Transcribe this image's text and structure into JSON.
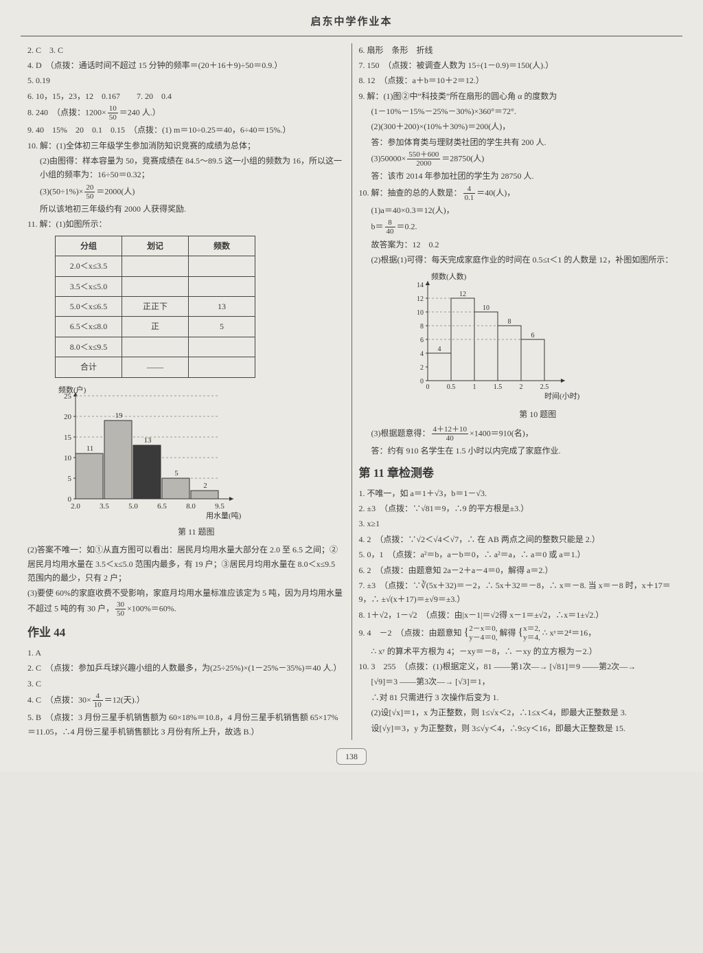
{
  "header": "启东中学作业本",
  "pageNumber": "138",
  "left": {
    "l2": "2. C　3. C",
    "l4": "4. D　（点拨：通话时间不超过 15 分钟的频率＝(20＋16＋9)÷50＝0.9.）",
    "l5": "5. 0.19",
    "l6": "6. 10，15，23，12　0.167　　7. 20　0.4",
    "l8a": "8. 240　（点拨：1200×",
    "l8b": "＝240 人.）",
    "l9a": "9. 40　15%　20　0.1　0.15　（点拨：(1) m＝10÷0.25＝40，6÷40＝15%.）",
    "l10_1": "10. 解：(1)全体初三年级学生参加消防知识竞赛的成绩为总体；",
    "l10_2": "(2)由图得：样本容量为 50，竞赛成绩在 84.5～89.5 这一小组的频数为 16，所以这一小组的频率为：16÷50＝0.32；",
    "l10_3a": "(3)(50÷1%)×",
    "l10_3b": "＝2000(人)",
    "l10_4": "所以该地初三年级约有 2000 人获得奖励.",
    "l11_1": "11. 解：(1)如图所示：",
    "table": {
      "headers": [
        "分组",
        "划记",
        "频数"
      ],
      "rows": [
        [
          "2.0＜x≤3.5",
          "",
          ""
        ],
        [
          "3.5＜x≤5.0",
          "",
          ""
        ],
        [
          "5.0＜x≤6.5",
          "正正下",
          "13"
        ],
        [
          "6.5＜x≤8.0",
          "正",
          "5"
        ],
        [
          "8.0＜x≤9.5",
          "",
          ""
        ],
        [
          "合计",
          "——",
          ""
        ]
      ]
    },
    "chart1": {
      "type": "bar",
      "yLabel": "频数(户)",
      "xLabel": "用水量(吨)",
      "yTicks": [
        0,
        5,
        10,
        15,
        20,
        25
      ],
      "xTicks": [
        "2.0",
        "3.5",
        "5.0",
        "6.5",
        "8.0",
        "9.5"
      ],
      "values": [
        11,
        19,
        13,
        5,
        2
      ],
      "highlightIndex": 2,
      "barColor": "#b8b6b0",
      "highlightColor": "#3a3a3a",
      "axisColor": "#333",
      "caption": "第 11 题图"
    },
    "l11_2": "(2)答案不唯一：如①从直方图可以看出：居民月均用水量大部分在 2.0 至 6.5 之间；②居民月均用水量在 3.5＜x≤5.0 范围内最多，有 19 户；③居民月均用水量在 8.0＜x≤9.5 范围内的最少，只有 2 户；",
    "l11_3a": "(3)要使 60%的家庭收费不受影响，家庭月均用水量标准应该定为 5 吨，因为月均用水量不超过 5 吨的有 30 户，",
    "l11_3b": "×100%＝60%.",
    "hw44": "作业 44",
    "h1": "1. A",
    "h2": "2. C　（点拨：参加乒乓球兴趣小组的人数最多，为(25÷25%)×(1－25%－35%)＝40 人.）",
    "h3": "3. C",
    "h4a": "4. C　（点拨：30×",
    "h4b": "＝12(天).）",
    "h5": "5. B　（点拨：3 月份三星手机销售额为 60×18%＝10.8，4 月份三星手机销售额 65×17%＝11.05，∴4 月份三星手机销售额比 3 月份有所上升，故选 B.）"
  },
  "right": {
    "r6": "6. 扇形　条形　折线",
    "r7": "7. 150　（点拨：被调查人数为 15÷(1－0.9)＝150(人).）",
    "r8": "8. 12　（点拨：a＋b＝10＋2＝12.）",
    "r9_1": "9. 解：(1)图②中“科技类”所在扇形的圆心角 α 的度数为",
    "r9_2": "(1－10%－15%－25%－30%)×360°＝72°.",
    "r9_3": "(2)(300＋200)×(10%＋30%)＝200(人)，",
    "r9_4": "答：参加体育类与理财类社团的学生共有 200 人.",
    "r9_5a": "(3)50000×",
    "r9_5b": "＝28750(人)",
    "r9_6": "答：该市 2014 年参加社团的学生为 28750 人.",
    "r10_1a": "10. 解：抽查的总的人数是：",
    "r10_1b": "＝40(人)，",
    "r10_2": "(1)a＝40×0.3＝12(人)，",
    "r10_3a": "b＝",
    "r10_3b": "＝0.2.",
    "r10_4": "故答案为：12　0.2",
    "r10_5": "(2)根据(1)可得：每天完成家庭作业的时间在 0.5≤t＜1 的人数是 12，补图如图所示：",
    "chart2": {
      "type": "bar",
      "yLabel": "频数(人数)",
      "xLabel": "时间(小时)",
      "yTicks": [
        0,
        2,
        4,
        6,
        8,
        10,
        12,
        14
      ],
      "xTicks": [
        "0",
        "0.5",
        "1",
        "1.5",
        "2",
        "2.5"
      ],
      "values": [
        4,
        12,
        10,
        8,
        6
      ],
      "barColor": "transparent",
      "borderColor": "#333",
      "axisColor": "#333",
      "caption": "第 10 题图"
    },
    "r10_6a": "(3)根据题意得：",
    "r10_6b": "×1400＝910(名)，",
    "r10_7": "答：约有 910 名学生在 1.5 小时以内完成了家庭作业.",
    "ch11": "第 11 章检测卷",
    "c1": "1. 不唯一，如 a＝1＋√3，b＝1－√3.",
    "c2": "2. ±3　（点拨：∵√81＝9，∴9 的平方根是±3.）",
    "c3": "3. x≥1",
    "c4": "4. 2　（点拨：∵√2＜√4＜√7，∴ 在 AB 两点之间的整数只能是 2.）",
    "c5": "5. 0，1　（点拨：a²＝b，a－b＝0，∴ a²＝a，∴ a＝0 或 a＝1.）",
    "c6": "6. 2　（点拨：由题意知 2a－2＋a－4＝0，解得 a＝2.）",
    "c7": "7. ±3　（点拨：∵∛(5x＋32)＝－2，∴ 5x＋32＝－8，∴ x＝－8. 当 x＝－8 时，x＋17＝9，∴ ±√(x＋17)＝±√9＝±3.）",
    "c8": "8. 1＋√2，1－√2　（点拨：由|x－1|＝√2得 x－1＝±√2，∴x＝1±√2.）",
    "c9a": "9. 4　－2　（点拨：由题意知",
    "c9b": "解得",
    "c9c": "∴ xʸ＝2⁴＝16，",
    "c9d": "∴ xʸ 的算术平方根为 4；－xy＝－8，∴ －xy 的立方根为－2.）",
    "c10_1": "10. 3　255　（点拨：(1)根据定义，81 ——第1次—→ [√81]＝9 ——第2次—→",
    "c10_2": "[√9]＝3 ——第3次—→ [√3]＝1，",
    "c10_3": "∴对 81 只需进行 3 次操作后变为 1.",
    "c10_4": "(2)设[√x]＝1，x 为正整数，则 1≤√x＜2，∴1≤x＜4，即最大正整数是 3.",
    "c10_5": "设[√y]＝3，y 为正整数，则 3≤√y＜4，∴9≤y＜16，即最大正整数是 15."
  }
}
